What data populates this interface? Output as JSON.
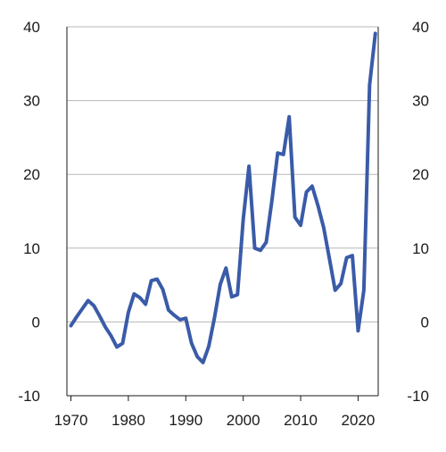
{
  "chart_data": {
    "type": "line",
    "title": "",
    "xlabel": "",
    "ylabel": "",
    "xlim": [
      1969.3,
      2023.5
    ],
    "ylim": [
      -10,
      40
    ],
    "x_ticks": [
      1970,
      1980,
      1990,
      2000,
      2010,
      2020
    ],
    "x_tick_labels": [
      "1970",
      "1980",
      "1990",
      "2000",
      "2010",
      "2020"
    ],
    "y_ticks": [
      -10,
      0,
      10,
      20,
      30,
      40
    ],
    "y_tick_labels": [
      "-10",
      "0",
      "10",
      "20",
      "30",
      "40"
    ],
    "right_axis": true,
    "grid": "horizontal",
    "legend": "none",
    "line_color": "#3a5ba8",
    "series": [
      {
        "x": [
          1970,
          1971,
          1972,
          1973,
          1974,
          1975,
          1976,
          1977,
          1978,
          1979,
          1980,
          1981,
          1982,
          1983,
          1984,
          1985,
          1986,
          1987,
          1988,
          1989,
          1990,
          1991,
          1992,
          1993,
          1994,
          1995,
          1996,
          1997,
          1998,
          1999,
          2000,
          2001,
          2002,
          2003,
          2004,
          2005,
          2006,
          2007,
          2008,
          2009,
          2010,
          2011,
          2012,
          2013,
          2014,
          2015,
          2016,
          2017,
          2018,
          2019,
          2020,
          2021,
          2022,
          2023
        ],
        "values": [
          -0.5,
          0.7,
          1.8,
          2.9,
          2.2,
          0.8,
          -0.7,
          -1.9,
          -3.4,
          -2.9,
          1.3,
          3.8,
          3.3,
          2.4,
          5.6,
          5.8,
          4.4,
          1.6,
          0.9,
          0.3,
          0.5,
          -2.9,
          -4.7,
          -5.5,
          -3.3,
          0.6,
          5.1,
          7.3,
          3.4,
          3.7,
          13.9,
          21.1,
          10.0,
          9.7,
          10.8,
          16.5,
          22.9,
          22.7,
          27.8,
          14.2,
          13.1,
          17.6,
          18.4,
          15.8,
          12.8,
          8.6,
          4.3,
          5.2,
          8.7,
          9.0,
          -1.2,
          4.3,
          32.1,
          39.1
        ]
      }
    ]
  }
}
